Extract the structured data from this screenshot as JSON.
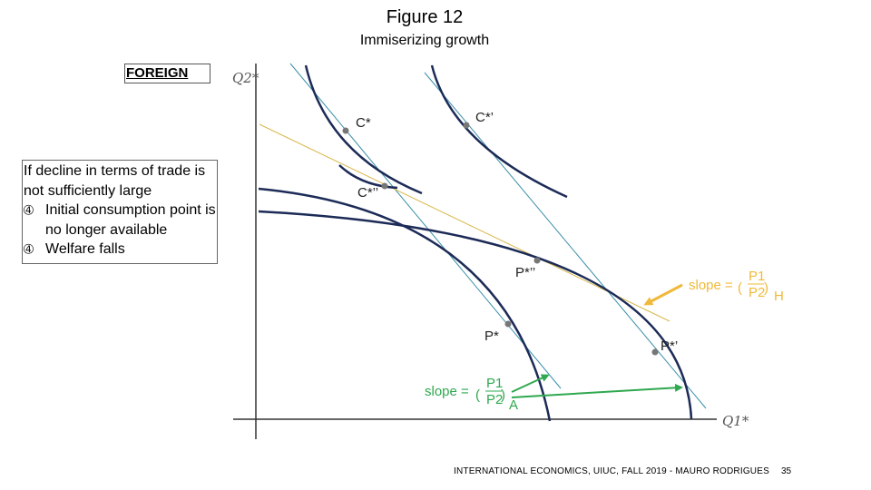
{
  "header": {
    "title": "Figure 12",
    "subtitle": "Immiserizing growth"
  },
  "label_box": "FOREIGN",
  "notes": {
    "intro": "If decline in terms of trade is not sufficiently large",
    "bullets": [
      {
        "marker": "➃",
        "text": "Initial consumption point is no longer available"
      },
      {
        "marker": "➃",
        "text": "Welfare falls"
      }
    ]
  },
  "diagram": {
    "y_axis_label": "Q2*",
    "x_axis_label": "Q1*",
    "points": {
      "c_star": "C*",
      "c_star_prime": "C*’",
      "c_star_dprime": "C*’’",
      "p_star": "P*",
      "p_star_prime": "P*’",
      "p_star_dprime": "P*’’"
    },
    "slope_home": {
      "prefix": "slope =",
      "num": "P1",
      "den": "P2",
      "sub": "H"
    },
    "slope_foreign": {
      "prefix": "slope =",
      "num": "P1",
      "den": "P2",
      "sub": "A"
    },
    "colors": {
      "ppf": "#1c2b57",
      "indifference": "#1c2b57",
      "price_line": "#3a8fa8",
      "home_price": "#f1b93a",
      "foreign_arrow": "#2fa84f"
    }
  },
  "footer": {
    "course": "INTERNATIONAL ECONOMICS, UIUC, FALL 2019 - MAURO RODRIGUES",
    "page": "35"
  }
}
